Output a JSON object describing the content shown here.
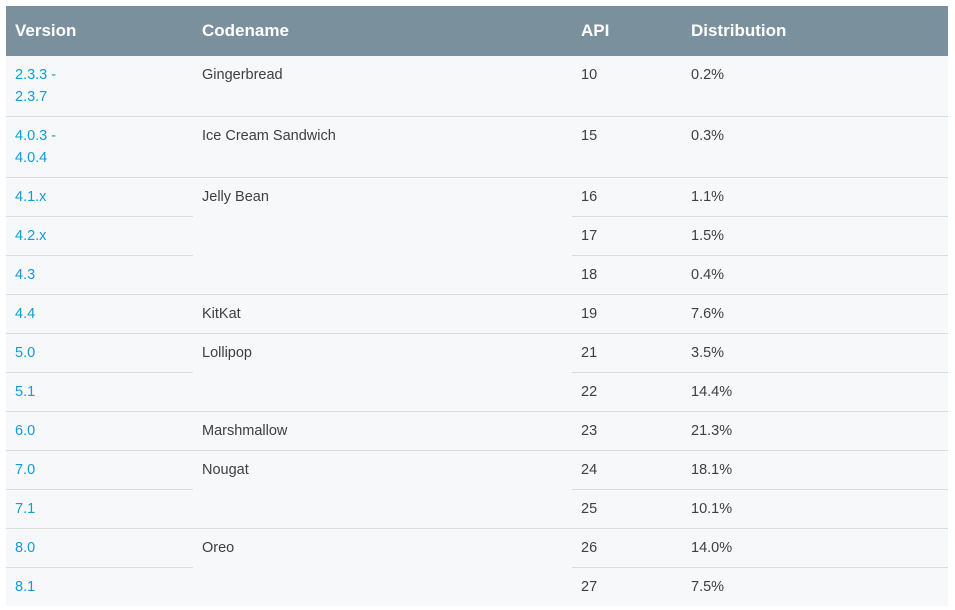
{
  "table": {
    "headers": {
      "version": "Version",
      "codename": "Codename",
      "api": "API",
      "distribution": "Distribution"
    },
    "rows": [
      {
        "version": "2.3.3 - 2.3.7",
        "codename": "Gingerbread",
        "api": "10",
        "distribution": "0.2%"
      },
      {
        "version": "4.0.3 - 4.0.4",
        "codename": "Ice Cream Sandwich",
        "api": "15",
        "distribution": "0.3%"
      },
      {
        "version": "4.1.x",
        "codename": "Jelly Bean",
        "api": "16",
        "distribution": "1.1%"
      },
      {
        "version": "4.2.x",
        "api": "17",
        "distribution": "1.5%"
      },
      {
        "version": "4.3",
        "api": "18",
        "distribution": "0.4%"
      },
      {
        "version": "4.4",
        "codename": "KitKat",
        "api": "19",
        "distribution": "7.6%"
      },
      {
        "version": "5.0",
        "codename": "Lollipop",
        "api": "21",
        "distribution": "3.5%"
      },
      {
        "version": "5.1",
        "api": "22",
        "distribution": "14.4%"
      },
      {
        "version": "6.0",
        "codename": "Marshmallow",
        "api": "23",
        "distribution": "21.3%"
      },
      {
        "version": "7.0",
        "codename": "Nougat",
        "api": "24",
        "distribution": "18.1%"
      },
      {
        "version": "7.1",
        "api": "25",
        "distribution": "10.1%"
      },
      {
        "version": "8.0",
        "codename": "Oreo",
        "api": "26",
        "distribution": "14.0%"
      },
      {
        "version": "8.1",
        "api": "27",
        "distribution": "7.5%"
      }
    ]
  },
  "colors": {
    "header_bg": "#7a919d",
    "row_bg": "#f7f8fa",
    "link": "#129bd4",
    "divider": "#dadce0"
  }
}
